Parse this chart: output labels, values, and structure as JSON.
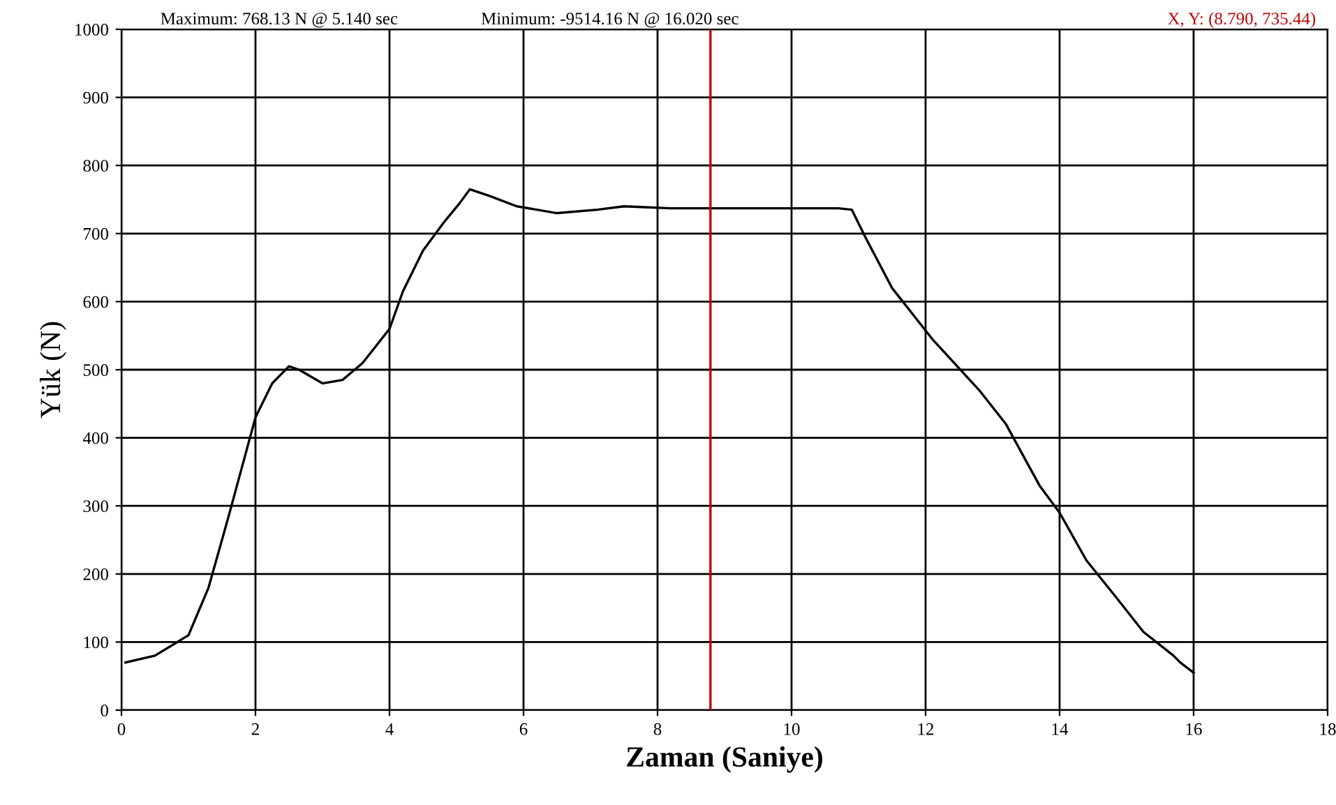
{
  "chart_data": {
    "type": "line",
    "xlabel": "Zaman (Saniye)",
    "ylabel": "Yük (N)",
    "annotations": [
      "Maximum: 768.13 N @ 5.140 sec",
      "Minimum: -9514.16 N @ 16.020 sec"
    ],
    "xlim": [
      0,
      18
    ],
    "ylim": [
      0,
      1000
    ],
    "xticks": [
      0,
      2,
      4,
      6,
      8,
      10,
      12,
      14,
      16,
      18
    ],
    "yticks": [
      0,
      100,
      200,
      300,
      400,
      500,
      600,
      700,
      800,
      900,
      1000
    ],
    "grid": true,
    "legend": false,
    "marker": "none",
    "line_style": "solid",
    "ref_lines": [
      {
        "axis": "x",
        "value": 8.79,
        "label": "X, Y: (8.790, 735.44)",
        "color": "#c00000"
      }
    ],
    "series": [
      {
        "color": "#000000",
        "x": [
          0.06,
          0.5,
          1.0,
          1.3,
          1.6,
          2.0,
          2.25,
          2.5,
          2.65,
          3.0,
          3.3,
          3.6,
          4.0,
          4.2,
          4.5,
          4.8,
          5.05,
          5.2,
          5.5,
          5.9,
          6.5,
          7.1,
          7.5,
          8.2,
          10.7,
          10.9,
          11.1,
          11.5,
          12.1,
          12.8,
          13.2,
          13.7,
          14.0,
          14.4,
          14.85,
          15.25,
          15.7,
          15.8,
          16.0
        ],
        "values": [
          70,
          80,
          110,
          180,
          285,
          430,
          480,
          505,
          500,
          480,
          485,
          510,
          560,
          615,
          675,
          715,
          745,
          765,
          755,
          740,
          730,
          735,
          740,
          737,
          737,
          735,
          695,
          620,
          545,
          470,
          420,
          330,
          290,
          220,
          165,
          115,
          80,
          70,
          55
        ]
      }
    ]
  }
}
